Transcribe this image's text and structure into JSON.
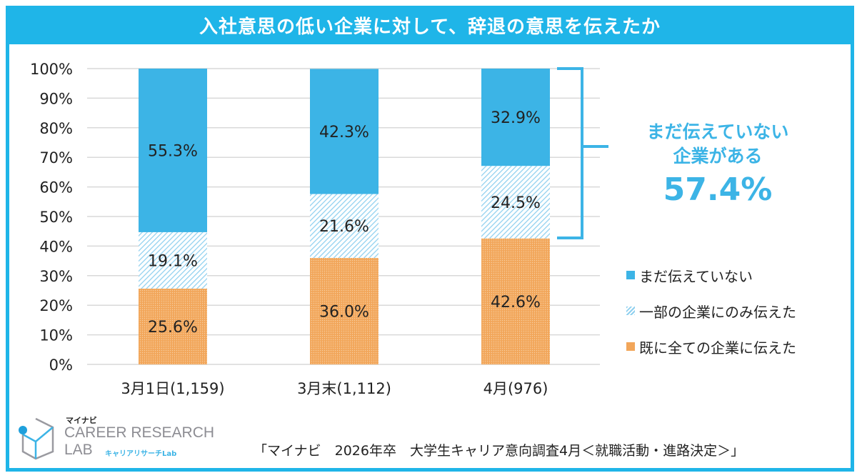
{
  "title": "入社意思の低い企業に対して、辞退の意思を伝えたか",
  "callout": {
    "line1": "まだ伝えていない",
    "line2": "企業がある",
    "value": "57.4%"
  },
  "source": "「マイナビ　2026年卒　大学生キャリア意向調査4月＜就職活動・進路決定＞」",
  "logo": {
    "brand": "マイナビ",
    "line1": "CAREER RESEARCH",
    "line2": "LAB",
    "sub": "キャリアリサーチLab"
  },
  "colors": {
    "frame": "#1fb5e8",
    "not_yet": "#3cb4e6",
    "partial": "#8fd0ef",
    "all": "#f2a65a"
  },
  "chart_data": {
    "type": "bar",
    "stacked": true,
    "categories": [
      "3月1日(1,159)",
      "3月末(1,112)",
      "4月(976)"
    ],
    "series": [
      {
        "name": "既に全ての企業に伝えた",
        "values": [
          25.6,
          36.0,
          42.6
        ],
        "labels": [
          "25.6%",
          "36.0%",
          "42.6%"
        ],
        "color": "#f2a65a",
        "pattern": "dots"
      },
      {
        "name": "一部の企業にのみ伝えた",
        "values": [
          19.1,
          21.6,
          24.5
        ],
        "labels": [
          "19.1%",
          "21.6%",
          "24.5%"
        ],
        "color": "#8fd0ef",
        "pattern": "hatch"
      },
      {
        "name": "まだ伝えていない",
        "values": [
          55.3,
          42.3,
          32.9
        ],
        "labels": [
          "55.3%",
          "42.3%",
          "32.9%"
        ],
        "color": "#3cb4e6",
        "pattern": "solid"
      }
    ],
    "yticks": [
      "0%",
      "10%",
      "20%",
      "30%",
      "40%",
      "50%",
      "60%",
      "70%",
      "80%",
      "90%",
      "100%"
    ],
    "ylim": [
      0,
      100
    ],
    "grid": true,
    "legend_placement": "right"
  }
}
